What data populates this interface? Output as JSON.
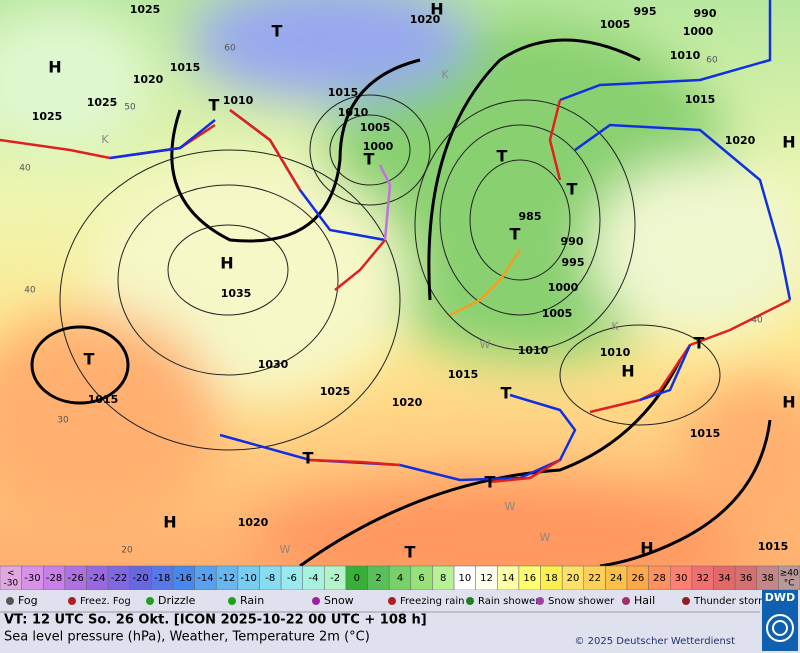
{
  "map": {
    "pressure_labels": [
      "1025",
      "1020",
      "995",
      "990",
      "1005",
      "1000",
      "1015",
      "1020",
      "1015",
      "1010",
      "1010",
      "1015",
      "1025",
      "1025",
      "1010",
      "1005",
      "1000",
      "1020",
      "985",
      "990",
      "995",
      "1035",
      "1000",
      "1005",
      "1010",
      "1010",
      "1030",
      "1015",
      "1025",
      "1020",
      "1015",
      "1015",
      "1020",
      "1015"
    ],
    "centers": [
      "H",
      "H",
      "T",
      "T",
      "T",
      "T",
      "H",
      "T",
      "H",
      "T",
      "H",
      "T",
      "T",
      "T",
      "T",
      "H",
      "T",
      "H",
      "H",
      "T"
    ],
    "isotherm_labels": [
      "60",
      "50",
      "40",
      "40",
      "30",
      "20",
      "40",
      "60"
    ],
    "air_mass_labels": [
      "K",
      "K",
      "K",
      "W",
      "W",
      "W",
      "W"
    ]
  },
  "scale": {
    "labels": [
      "-30",
      "-28",
      "-26",
      "-24",
      "-22",
      "-20",
      "-18",
      "-16",
      "-14",
      "-12",
      "-10",
      "-8",
      "-6",
      "-4",
      "-2",
      "0",
      "2",
      "4",
      "6",
      "8",
      "10",
      "12",
      "14",
      "16",
      "18",
      "20",
      "22",
      "24",
      "26",
      "28",
      "30",
      "32",
      "34",
      "36",
      "38"
    ],
    "colors": [
      "#d890e8",
      "#c880e8",
      "#b070e0",
      "#9868e0",
      "#8068e0",
      "#6668e0",
      "#5878e8",
      "#4888ec",
      "#58a0f0",
      "#68b6f0",
      "#78ccf0",
      "#88dcf0",
      "#98eaee",
      "#a6f2de",
      "#b2f4c8",
      "#38b038",
      "#58c058",
      "#78d068",
      "#98e078",
      "#b8f098",
      "#ffffff",
      "#fffff0",
      "#ffffa8",
      "#ffff70",
      "#fff050",
      "#ffe068",
      "#ffd058",
      "#ffc048",
      "#ffa848",
      "#ff9060",
      "#ff8070",
      "#f07070",
      "#e46868",
      "#d47070",
      "#c48686"
    ],
    "low_end": {
      "top": "<",
      "bottom": "-30",
      "color": "#e0a8e0"
    },
    "high_end": {
      "top": "≥40",
      "bottom": "°C",
      "color": "#b89898"
    }
  },
  "legend": [
    "Fog",
    "Freez. Fog",
    "Drizzle",
    "Rain",
    "Snow",
    "Freezing rain",
    "Rain shower",
    "Snow shower",
    "Hail",
    "Thunder storm"
  ],
  "footer": {
    "valid": "VT: 12 UTC So.  26 Okt. [ICON 2025-10-22  00 UTC + 108 h]",
    "description": "Sea level pressure (hPa), Weather, Temperature 2m (°C)",
    "copyright": "© 2025 Deutscher Wetterdienst",
    "logo": "DWD"
  }
}
